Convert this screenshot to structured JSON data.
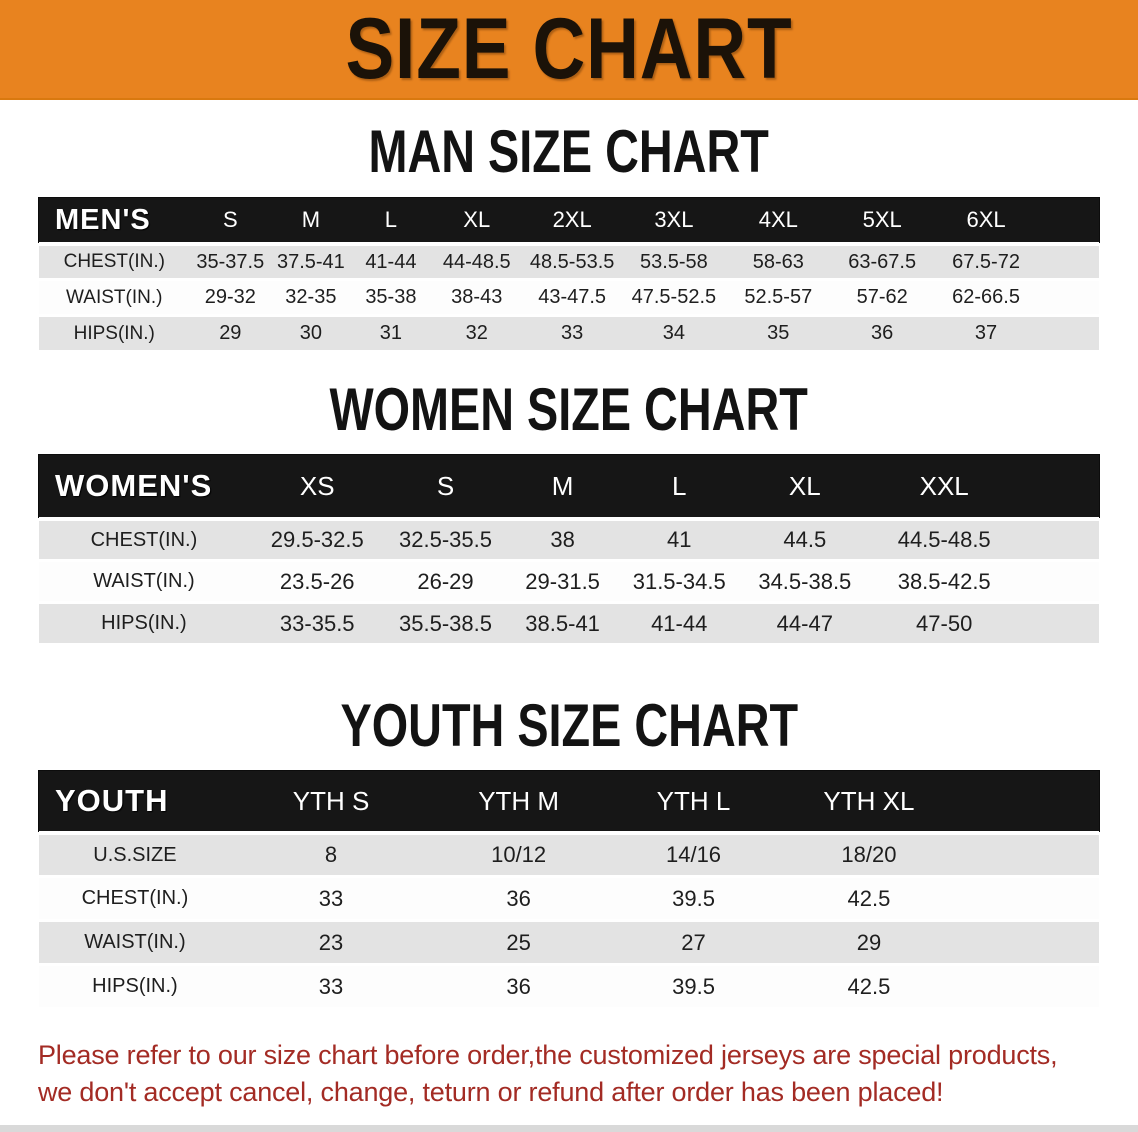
{
  "banner": {
    "title": "SIZE CHART",
    "bg_color": "#E8831F",
    "text_color": "#1B1208"
  },
  "sections": [
    {
      "id": "men",
      "heading": "MAN SIZE CHART",
      "table": {
        "header_label": "MEN'S",
        "columns": [
          "S",
          "M",
          "L",
          "XL",
          "2XL",
          "3XL",
          "4XL",
          "5XL",
          "6XL"
        ],
        "rows": [
          {
            "label": "CHEST(IN.)",
            "values": [
              "35-37.5",
              "37.5-41",
              "41-44",
              "44-48.5",
              "48.5-53.5",
              "53.5-58",
              "58-63",
              "63-67.5",
              "67.5-72"
            ]
          },
          {
            "label": "WAIST(IN.)",
            "values": [
              "29-32",
              "32-35",
              "35-38",
              "38-43",
              "43-47.5",
              "47.5-52.5",
              "52.5-57",
              "57-62",
              "62-66.5"
            ]
          },
          {
            "label": "HIPS(IN.)",
            "values": [
              "29",
              "30",
              "31",
              "32",
              "33",
              "34",
              "35",
              "36",
              "37"
            ]
          }
        ]
      }
    },
    {
      "id": "women",
      "heading": "WOMEN SIZE CHART",
      "table": {
        "header_label": "WOMEN'S",
        "columns": [
          "XS",
          "S",
          "M",
          "L",
          "XL",
          "XXL"
        ],
        "rows": [
          {
            "label": "CHEST(IN.)",
            "values": [
              "29.5-32.5",
              "32.5-35.5",
              "38",
              "41",
              "44.5",
              "44.5-48.5"
            ]
          },
          {
            "label": "WAIST(IN.)",
            "values": [
              "23.5-26",
              "26-29",
              "29-31.5",
              "31.5-34.5",
              "34.5-38.5",
              "38.5-42.5"
            ]
          },
          {
            "label": "HIPS(IN.)",
            "values": [
              "33-35.5",
              "35.5-38.5",
              "38.5-41",
              "41-44",
              "44-47",
              "47-50"
            ]
          }
        ]
      }
    },
    {
      "id": "youth",
      "heading": "YOUTH SIZE CHART",
      "table": {
        "header_label": "YOUTH",
        "columns": [
          "YTH S",
          "YTH M",
          "YTH L",
          "YTH XL"
        ],
        "rows": [
          {
            "label": "U.S.SIZE",
            "values": [
              "8",
              "10/12",
              "14/16",
              "18/20"
            ]
          },
          {
            "label": "CHEST(IN.)",
            "values": [
              "33",
              "36",
              "39.5",
              "42.5"
            ]
          },
          {
            "label": "WAIST(IN.)",
            "values": [
              "23",
              "25",
              "27",
              "29"
            ]
          },
          {
            "label": "HIPS(IN.)",
            "values": [
              "33",
              "36",
              "39.5",
              "42.5"
            ]
          }
        ]
      }
    }
  ],
  "disclaimer": {
    "line1": "Please refer to our size chart before order,the customized jerseys are special products,",
    "line2": "we don't accept cancel, change, teturn or refund after order has been placed!",
    "color": "#A32B24"
  },
  "colors": {
    "banner_orange": "#E8831F",
    "table_header_black": "#161616",
    "row_gray": "#E3E3E3",
    "row_white": "#FDFDFD",
    "disclaimer_red": "#A32B24",
    "bottom_bar_gray": "#D9D9D9"
  },
  "chart_data": [
    {
      "type": "table",
      "title": "MAN SIZE CHART",
      "columns": [
        "MEN'S",
        "S",
        "M",
        "L",
        "XL",
        "2XL",
        "3XL",
        "4XL",
        "5XL",
        "6XL"
      ],
      "rows": [
        [
          "CHEST(IN.)",
          "35-37.5",
          "37.5-41",
          "41-44",
          "44-48.5",
          "48.5-53.5",
          "53.5-58",
          "58-63",
          "63-67.5",
          "67.5-72"
        ],
        [
          "WAIST(IN.)",
          "29-32",
          "32-35",
          "35-38",
          "38-43",
          "43-47.5",
          "47.5-52.5",
          "52.5-57",
          "57-62",
          "62-66.5"
        ],
        [
          "HIPS(IN.)",
          "29",
          "30",
          "31",
          "32",
          "33",
          "34",
          "35",
          "36",
          "37"
        ]
      ]
    },
    {
      "type": "table",
      "title": "WOMEN SIZE CHART",
      "columns": [
        "WOMEN'S",
        "XS",
        "S",
        "M",
        "L",
        "XL",
        "XXL"
      ],
      "rows": [
        [
          "CHEST(IN.)",
          "29.5-32.5",
          "32.5-35.5",
          "38",
          "41",
          "44.5",
          "44.5-48.5"
        ],
        [
          "WAIST(IN.)",
          "23.5-26",
          "26-29",
          "29-31.5",
          "31.5-34.5",
          "34.5-38.5",
          "38.5-42.5"
        ],
        [
          "HIPS(IN.)",
          "33-35.5",
          "35.5-38.5",
          "38.5-41",
          "41-44",
          "44-47",
          "47-50"
        ]
      ]
    },
    {
      "type": "table",
      "title": "YOUTH SIZE CHART",
      "columns": [
        "YOUTH",
        "YTH S",
        "YTH M",
        "YTH L",
        "YTH XL"
      ],
      "rows": [
        [
          "U.S.SIZE",
          "8",
          "10/12",
          "14/16",
          "18/20"
        ],
        [
          "CHEST(IN.)",
          "33",
          "36",
          "39.5",
          "42.5"
        ],
        [
          "WAIST(IN.)",
          "23",
          "25",
          "27",
          "29"
        ],
        [
          "HIPS(IN.)",
          "33",
          "36",
          "39.5",
          "42.5"
        ]
      ]
    }
  ]
}
